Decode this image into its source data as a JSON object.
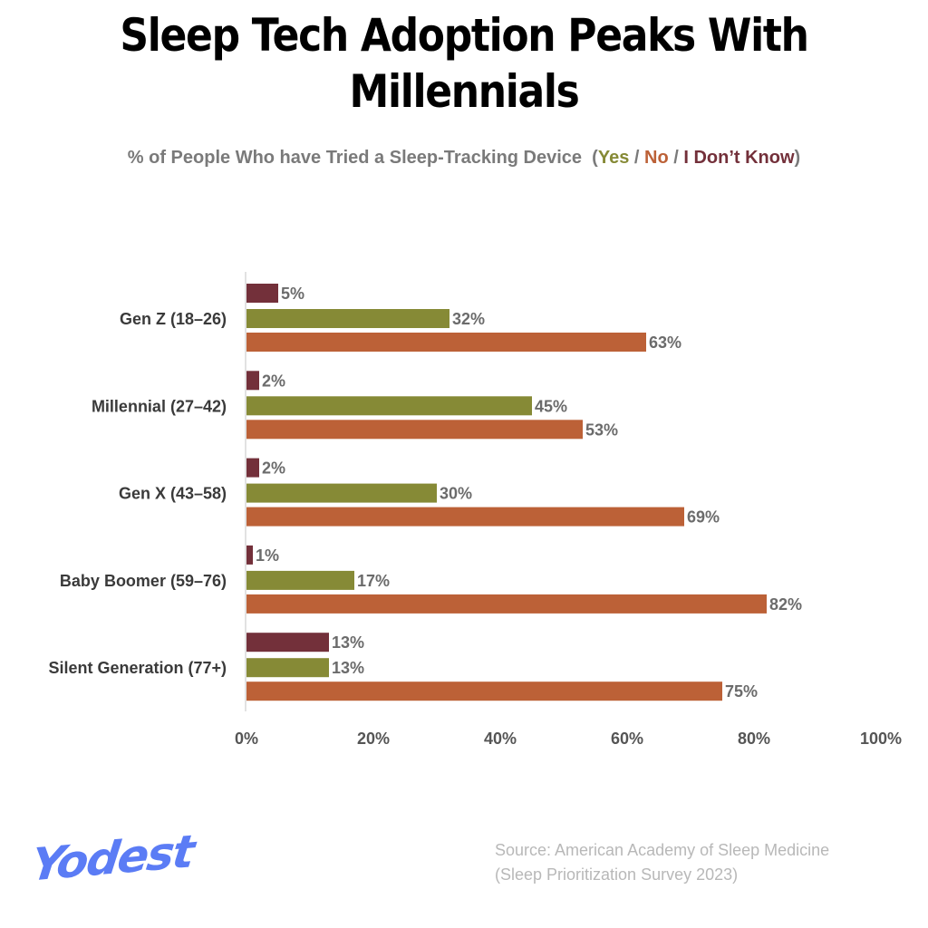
{
  "title": "Sleep Tech Adoption Peaks With Millennials",
  "subtitle": {
    "prefix": "% of People Who have Tried a Sleep-Tracking Device",
    "yes": "Yes",
    "no": "No",
    "idk": "I Don’t Know"
  },
  "source": {
    "line1": "Source: American Academy of Sleep Medicine",
    "line2": "(Sleep Prioritization Survey 2023)"
  },
  "logo": "Yodest",
  "chart_data": {
    "type": "bar",
    "orientation": "horizontal",
    "categories": [
      "Gen Z (18–26)",
      "Millennial (27–42)",
      "Gen X (43–58)",
      "Baby Boomer (59–76)",
      "Silent Generation (77+)"
    ],
    "series": [
      {
        "name": "I Don’t Know",
        "color": "#73303a",
        "values": [
          5,
          2,
          2,
          1,
          13
        ]
      },
      {
        "name": "Yes",
        "color": "#868a36",
        "values": [
          32,
          45,
          30,
          17,
          13
        ]
      },
      {
        "name": "No",
        "color": "#bc6137",
        "values": [
          63,
          53,
          69,
          82,
          75
        ]
      }
    ],
    "xlim": [
      0,
      100
    ],
    "xticks": [
      "0%",
      "20%",
      "40%",
      "60%",
      "80%",
      "100%"
    ],
    "grid": false,
    "value_suffix": "%"
  }
}
